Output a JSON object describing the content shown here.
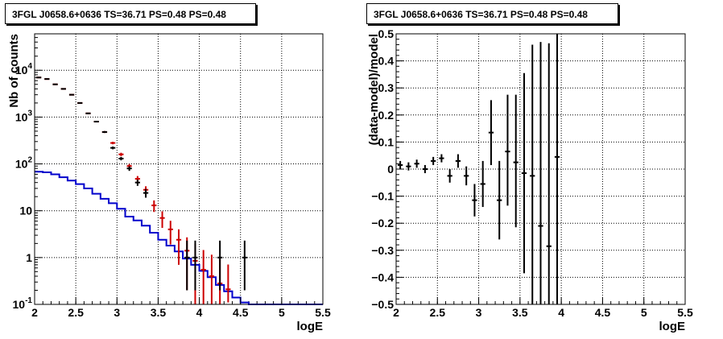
{
  "chart_data": [
    {
      "type": "line",
      "title": "3FGL J0658.6+0636 TS=36.71 PS=0.48 PS=0.48",
      "xlabel": "logE",
      "ylabel": "Nb of counts",
      "xlim": [
        2,
        5.5
      ],
      "ylim": [
        0.1,
        60000
      ],
      "yscale": "log",
      "grid": true,
      "x_ticks": [
        2,
        2.5,
        3,
        3.5,
        4,
        4.5,
        5,
        5.5
      ],
      "x_tick_labels": [
        "2",
        "2.5",
        "3",
        "3.5",
        "4",
        "4.5",
        "5",
        "5.5"
      ],
      "y_ticks": [
        0.1,
        1,
        10,
        100,
        1000,
        10000
      ],
      "y_tick_labels": [
        "10^-1",
        "1",
        "10",
        "10^2",
        "10^3",
        "10^4"
      ],
      "bin_edges": [
        2.0,
        2.1,
        2.2,
        2.3,
        2.4,
        2.5,
        2.6,
        2.7,
        2.8,
        2.9,
        3.0,
        3.1,
        3.2,
        3.3,
        3.4,
        3.5,
        3.6,
        3.7,
        3.8,
        3.9,
        4.0,
        4.1,
        4.2,
        4.3,
        4.4,
        4.5,
        4.6,
        5.5
      ],
      "series": [
        {
          "color": "#0000cc",
          "style": "histogram",
          "values": [
            68,
            66,
            60,
            52,
            44,
            37,
            30,
            23,
            18,
            14.5,
            11,
            7.5,
            6.2,
            4.8,
            3.4,
            2.4,
            1.8,
            1.35,
            0.95,
            0.7,
            0.52,
            0.38,
            0.26,
            0.19,
            0.14,
            0.11,
            0.1
          ]
        },
        {
          "color": "#cc0000",
          "style": "errorbar",
          "values": [
            7000,
            6500,
            5000,
            4000,
            3000,
            2000,
            1200,
            800,
            480,
            280,
            160,
            90,
            48,
            28,
            13,
            7,
            4,
            2.4,
            1.4,
            0.85,
            0.55,
            0.4,
            0.28,
            0.21
          ],
          "err_low": [
            200,
            180,
            150,
            120,
            90,
            60,
            40,
            30,
            22,
            17,
            13,
            9.5,
            7,
            5.3,
            3.6,
            2.7,
            2.1,
            1.7,
            1.2,
            0.75,
            0.45,
            0.3,
            0.2,
            0.1
          ],
          "err_high": [
            200,
            180,
            150,
            120,
            90,
            60,
            40,
            30,
            22,
            17,
            13,
            9.5,
            7,
            5.3,
            3.6,
            2.7,
            2.1,
            1.6,
            1.3,
            1.1,
            0.9,
            0.75,
            0.65,
            0.5
          ]
        },
        {
          "color": "#000000",
          "style": "errorbar",
          "x": [
            2.05,
            2.15,
            2.25,
            2.35,
            2.45,
            2.55,
            2.65,
            2.75,
            2.85,
            2.95,
            3.05,
            3.15,
            3.25,
            3.35,
            3.85,
            3.95,
            4.25,
            4.55
          ],
          "values": [
            7000,
            6500,
            5000,
            4000,
            3000,
            2000,
            1200,
            800,
            480,
            220,
            130,
            80,
            40,
            24,
            1,
            1,
            1,
            1
          ],
          "err_low": [
            200,
            180,
            150,
            120,
            90,
            60,
            40,
            30,
            22,
            15,
            11,
            9,
            6,
            5,
            0.8,
            0.8,
            0.8,
            0.8
          ],
          "err_high": [
            200,
            180,
            150,
            120,
            90,
            60,
            40,
            30,
            22,
            15,
            11,
            9,
            6,
            5,
            1.3,
            1.3,
            1.3,
            1.3
          ]
        }
      ]
    },
    {
      "type": "scatter",
      "title": "3FGL J0658.6+0636 TS=36.71 PS=0.48 PS=0.48",
      "xlabel": "logE",
      "ylabel": "(data-model)/model",
      "xlim": [
        2,
        5.5
      ],
      "ylim": [
        -0.5,
        0.5
      ],
      "grid": true,
      "x_ticks": [
        2,
        2.5,
        3,
        3.5,
        4,
        4.5,
        5,
        5.5
      ],
      "x_tick_labels": [
        "2",
        "2.5",
        "3",
        "3.5",
        "4",
        "4.5",
        "5",
        "5.5"
      ],
      "y_ticks": [
        -0.5,
        -0.4,
        -0.3,
        -0.2,
        -0.1,
        0,
        0.1,
        0.2,
        0.3,
        0.4,
        0.5
      ],
      "y_tick_labels": [
        "−0.5",
        "−0.4",
        "−0.3",
        "−0.2",
        "−0.1",
        "0",
        "0.1",
        "0.2",
        "0.3",
        "0.4",
        "0.5"
      ],
      "series": [
        {
          "color": "#000000",
          "style": "errorbar",
          "x": [
            2.05,
            2.15,
            2.25,
            2.35,
            2.45,
            2.55,
            2.65,
            2.75,
            2.85,
            2.95,
            3.05,
            3.15,
            3.25,
            3.35,
            3.45,
            3.55,
            3.65,
            3.75,
            3.85,
            3.95
          ],
          "values": [
            0.015,
            0.01,
            0.02,
            0.0,
            0.03,
            0.04,
            -0.025,
            0.03,
            -0.025,
            -0.115,
            -0.055,
            0.135,
            -0.115,
            0.065,
            0.025,
            -0.015,
            -0.025,
            -0.21,
            -0.285,
            0.045
          ],
          "err_low": [
            0.015,
            0.015,
            0.015,
            0.015,
            0.015,
            0.015,
            0.025,
            0.025,
            0.035,
            0.06,
            0.085,
            0.12,
            0.145,
            0.2,
            0.24,
            0.37,
            0.48,
            0.29,
            0.215,
            0.545
          ],
          "err_high": [
            0.015,
            0.015,
            0.015,
            0.015,
            0.015,
            0.015,
            0.025,
            0.025,
            0.035,
            0.06,
            0.085,
            0.12,
            0.145,
            0.21,
            0.25,
            0.37,
            0.485,
            0.68,
            0.75,
            0.455
          ]
        }
      ]
    }
  ]
}
